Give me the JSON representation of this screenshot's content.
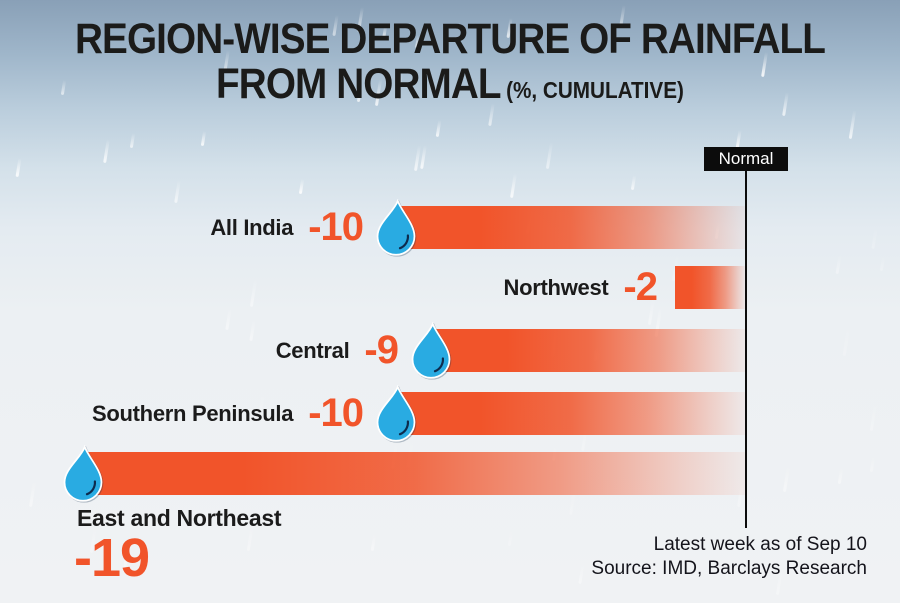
{
  "title": {
    "line1": "REGION-WISE DEPARTURE OF RAINFALL",
    "line2": "FROM NORMAL",
    "subtitle": "(%, CUMULATIVE)"
  },
  "marker": {
    "label": "Normal"
  },
  "footer": {
    "note": "Latest week as of Sep 10",
    "source": "Source: IMD, Barclays Research"
  },
  "colors": {
    "orange": "#f1542a",
    "drop_blue": "#29abe2",
    "drop_accent": "#0d2b4d",
    "marker_black": "#0c0c0c",
    "text_dark": "#1b1b1b",
    "sky_top": "#89a0b7",
    "sky_bottom": "#f0f2f4"
  },
  "chart_data": {
    "type": "bar",
    "orientation": "horizontal",
    "title": "REGION-WISE DEPARTURE OF RAINFALL FROM NORMAL (%, CUMULATIVE)",
    "categories": [
      "All India",
      "Northwest",
      "Central",
      "Southern Peninsula",
      "East and Northeast"
    ],
    "values": [
      -10,
      -2,
      -9,
      -10,
      -19
    ],
    "value_labels": [
      "-10",
      "-2",
      "-9",
      "-10",
      "-19"
    ],
    "units": "%",
    "baseline": {
      "label": "Normal",
      "value": 0
    },
    "xlim": [
      -20,
      0
    ],
    "legend": "none",
    "grid": false,
    "notes": [
      "Latest week as of Sep 10"
    ],
    "source": "Source: IMD, Barclays Research"
  }
}
